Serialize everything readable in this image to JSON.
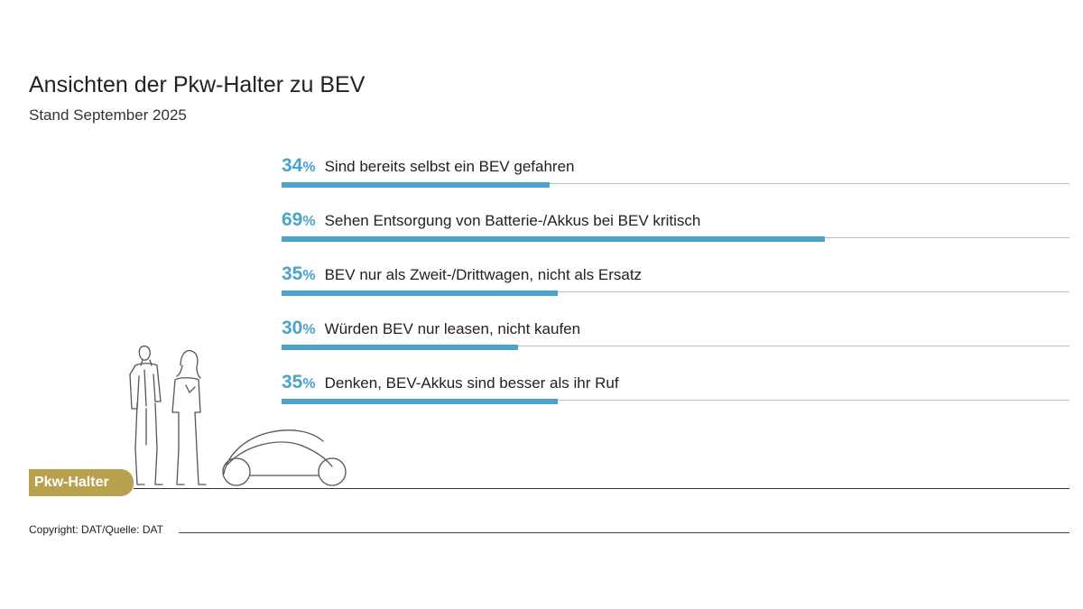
{
  "header": {
    "title": "Ansichten der Pkw-Halter zu BEV",
    "subtitle": "Stand September 2025"
  },
  "colors": {
    "accent": "#4aa3c8",
    "badge": "#b9a04e",
    "track": "#bfbfbf"
  },
  "chart_data": {
    "type": "bar",
    "orientation": "horizontal",
    "xlim": [
      0,
      100
    ],
    "unit": "%",
    "categories": [
      "Sind bereits selbst ein BEV gefahren",
      "Sehen Entsorgung von Batterie-/Akkus bei BEV kritisch",
      "BEV nur als Zweit-/Drittwagen, nicht als Ersatz",
      "Würden BEV nur leasen, nicht kaufen",
      "Denken, BEV-Akkus sind besser als ihr Ruf"
    ],
    "values": [
      34,
      69,
      35,
      30,
      35
    ]
  },
  "badge": {
    "label": "Pkw-Halter"
  },
  "footer": {
    "copyright": "Copyright: DAT/Quelle: DAT"
  }
}
